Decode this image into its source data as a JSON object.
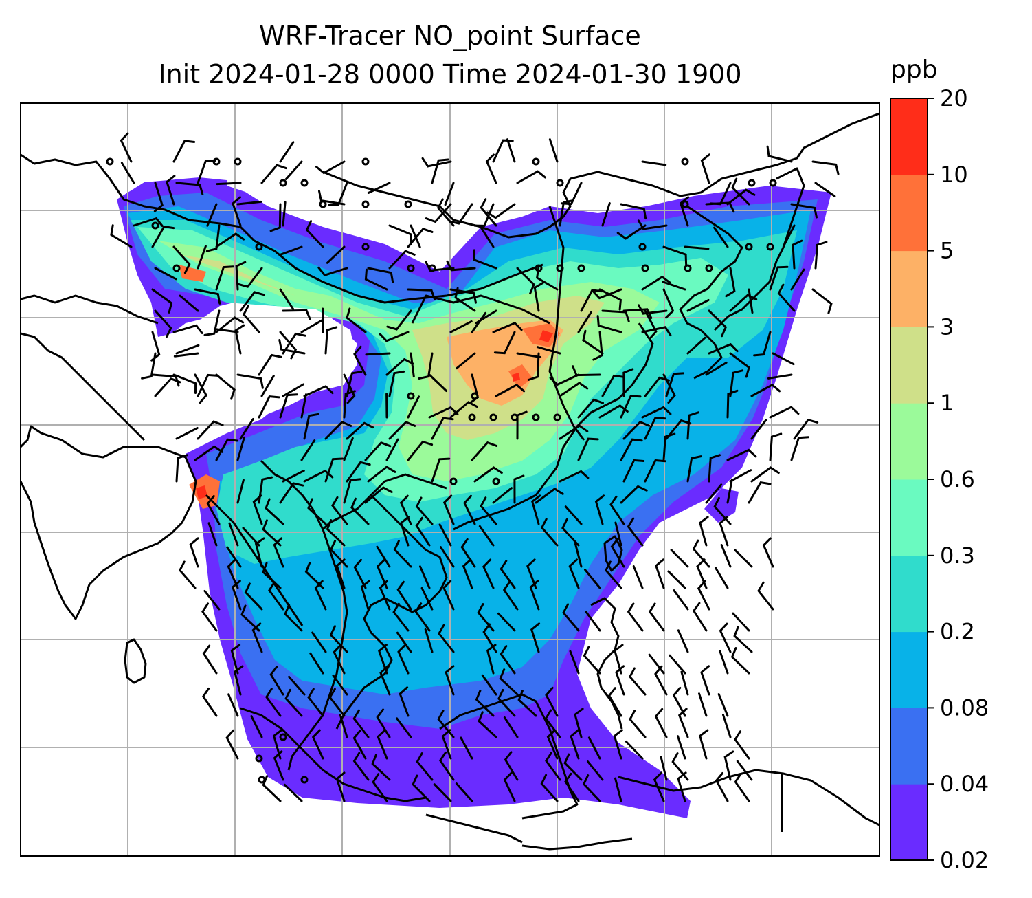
{
  "title": {
    "line1": "WRF-Tracer NO_point Surface",
    "line2": "Init 2024-01-28 0000 Time 2024-01-30 1900"
  },
  "colorbar": {
    "unit": "ppb",
    "levels": [
      "0.02",
      "0.04",
      "0.08",
      "0.2",
      "0.3",
      "0.6",
      "1",
      "3",
      "5",
      "10",
      "20"
    ],
    "colors": [
      "#6a2cff",
      "#3a70f2",
      "#08b2e8",
      "#30dccc",
      "#6afac0",
      "#9bfa9a",
      "#cfe089",
      "#fdb166",
      "#ff7139",
      "#ff2d19"
    ]
  },
  "map": {
    "projection": "lat-lon",
    "gridlines": true,
    "land_outline_color": "#000000",
    "grid_color": "#b0b0b0",
    "wind_barb_color": "#000000"
  }
}
